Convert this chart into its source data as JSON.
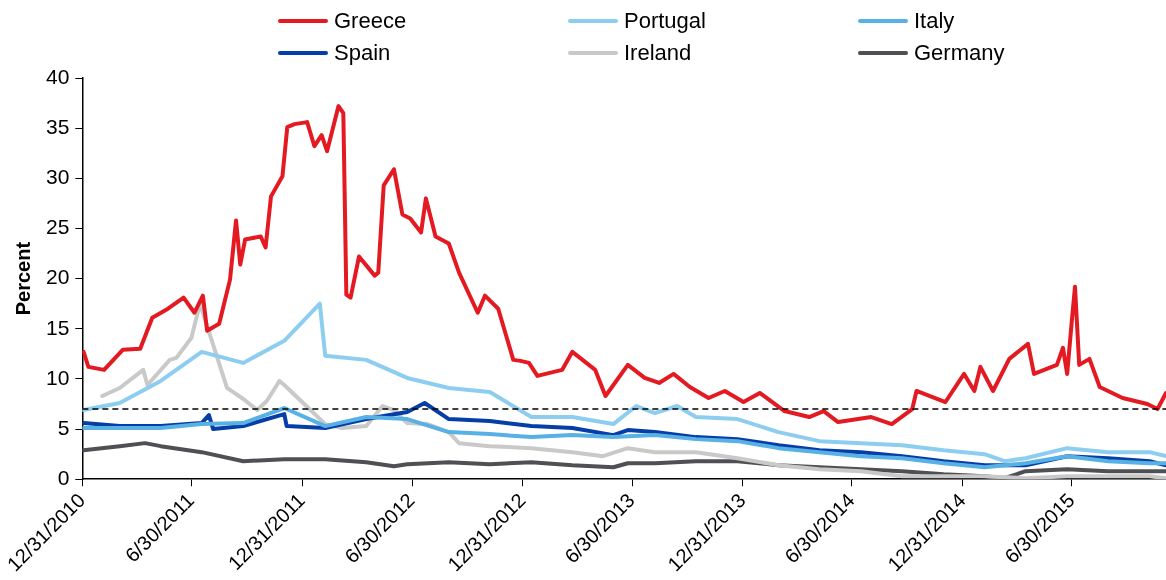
{
  "chart_data": {
    "type": "line",
    "ylabel": "Percent",
    "xlim": [
      "2010-12-31",
      "2015-12-03"
    ],
    "ylim": [
      0,
      40
    ],
    "yticks": [
      0,
      5,
      10,
      15,
      20,
      25,
      30,
      35,
      40
    ],
    "xticks": [
      {
        "value": "2010-12-31",
        "label": "12/31/2010"
      },
      {
        "value": "2011-06-30",
        "label": "6/30/2011"
      },
      {
        "value": "2011-12-31",
        "label": "12/31/2011"
      },
      {
        "value": "2012-06-30",
        "label": "6/30/2012"
      },
      {
        "value": "2012-12-31",
        "label": "12/31/2012"
      },
      {
        "value": "2013-06-30",
        "label": "6/30/2013"
      },
      {
        "value": "2013-12-31",
        "label": "12/31/2013"
      },
      {
        "value": "2014-06-30",
        "label": "6/30/2014"
      },
      {
        "value": "2014-12-31",
        "label": "12/31/2014"
      },
      {
        "value": "2015-06-30",
        "label": "6/30/2015"
      }
    ],
    "grid": false,
    "legend": "top",
    "marker": "none",
    "line_style": "solid",
    "ref_lines": [
      {
        "axis": "y",
        "value": 7,
        "color": "#000000",
        "line_style": "dashed"
      }
    ],
    "series": [
      {
        "name": "Greece",
        "color": "#e31a22",
        "x": [
          "2011-01-02",
          "2011-01-10",
          "2011-02-05",
          "2011-03-08",
          "2011-04-06",
          "2011-04-26",
          "2011-05-22",
          "2011-06-17",
          "2011-07-05",
          "2011-07-19",
          "2011-07-26",
          "2011-08-15",
          "2011-09-02",
          "2011-09-12",
          "2011-09-19",
          "2011-09-27",
          "2011-10-23",
          "2011-10-31",
          "2011-11-09",
          "2011-11-28",
          "2011-12-06",
          "2011-12-18",
          "2012-01-08",
          "2012-01-20",
          "2012-02-01",
          "2012-02-10",
          "2012-02-29",
          "2012-03-08",
          "2012-03-13",
          "2012-03-20",
          "2012-04-03",
          "2012-04-29",
          "2012-05-05",
          "2012-05-14",
          "2012-05-31",
          "2012-06-14",
          "2012-06-27",
          "2012-07-15",
          "2012-07-23",
          "2012-08-08",
          "2012-08-30",
          "2012-09-16",
          "2012-10-17",
          "2012-10-29",
          "2012-11-20",
          "2012-12-15",
          "2012-12-27",
          "2013-01-10",
          "2013-01-24",
          "2013-03-06",
          "2013-03-23",
          "2013-04-30",
          "2013-05-17",
          "2013-06-23",
          "2013-07-21",
          "2013-08-14",
          "2013-09-07",
          "2013-10-04",
          "2013-11-04",
          "2013-12-01",
          "2014-01-01",
          "2014-01-28",
          "2014-03-10",
          "2014-04-20",
          "2014-05-14",
          "2014-06-07",
          "2014-08-01",
          "2014-09-04",
          "2014-10-08",
          "2014-10-15",
          "2014-12-02",
          "2015-01-02",
          "2015-01-19",
          "2015-01-29",
          "2015-02-19",
          "2015-03-18",
          "2015-04-18",
          "2015-04-28",
          "2015-06-05",
          "2015-06-15",
          "2015-06-22",
          "2015-06-29",
          "2015-07-05",
          "2015-07-12",
          "2015-07-29",
          "2015-08-15",
          "2015-09-22",
          "2015-11-02",
          "2015-11-19",
          "2015-12-03"
        ],
        "values": [
          12.7,
          11.2,
          10.9,
          12.9,
          13.0,
          16.1,
          17.0,
          18.1,
          16.6,
          18.3,
          14.8,
          15.5,
          19.9,
          25.8,
          21.4,
          23.9,
          24.2,
          23.1,
          28.2,
          30.2,
          35.1,
          35.4,
          35.6,
          33.2,
          34.3,
          32.7,
          37.2,
          36.5,
          18.4,
          18.1,
          22.2,
          20.3,
          20.6,
          29.3,
          30.9,
          26.4,
          26.0,
          24.6,
          28.0,
          24.2,
          23.5,
          20.6,
          16.6,
          18.3,
          17.0,
          11.9,
          11.8,
          11.6,
          10.3,
          10.9,
          12.7,
          10.9,
          8.3,
          11.4,
          10.1,
          9.6,
          10.5,
          9.2,
          8.1,
          8.8,
          7.7,
          8.6,
          6.8,
          6.2,
          6.8,
          5.7,
          6.2,
          5.5,
          7.0,
          8.8,
          7.7,
          10.5,
          8.8,
          11.2,
          8.8,
          12.0,
          13.5,
          10.5,
          11.4,
          13.1,
          10.5,
          15.3,
          19.2,
          11.4,
          12.0,
          9.2,
          8.1,
          7.5,
          7.0,
          8.6
        ]
      },
      {
        "name": "Portugal",
        "color": "#8dcdf0",
        "x": [
          "2011-01-02",
          "2011-03-03",
          "2011-05-10",
          "2011-07-17",
          "2011-09-24",
          "2011-12-01",
          "2012-01-29",
          "2012-02-07",
          "2012-04-15",
          "2012-06-22",
          "2012-08-30",
          "2012-11-06",
          "2013-01-14",
          "2013-03-23",
          "2013-05-30",
          "2013-07-07",
          "2013-08-07",
          "2013-09-13",
          "2013-10-14",
          "2013-12-22",
          "2014-02-28",
          "2014-05-07",
          "2014-07-15",
          "2014-09-21",
          "2014-11-29",
          "2015-02-05",
          "2015-03-10",
          "2015-04-14",
          "2015-06-22",
          "2015-08-29",
          "2015-11-06",
          "2015-12-03"
        ],
        "values": [
          6.9,
          7.6,
          9.8,
          12.7,
          11.6,
          13.8,
          17.5,
          12.3,
          11.9,
          10.1,
          9.1,
          8.7,
          6.2,
          6.2,
          5.5,
          7.3,
          6.6,
          7.3,
          6.2,
          6.0,
          4.7,
          3.8,
          3.6,
          3.4,
          2.9,
          2.5,
          1.8,
          2.1,
          3.1,
          2.7,
          2.7,
          2.3
        ]
      },
      {
        "name": "Italy",
        "color": "#58b1e4",
        "x": [
          "2011-01-02",
          "2011-03-03",
          "2011-05-10",
          "2011-07-17",
          "2011-09-24",
          "2011-12-01",
          "2012-02-07",
          "2012-04-15",
          "2012-06-22",
          "2012-08-30",
          "2012-11-06",
          "2013-01-14",
          "2013-03-23",
          "2013-05-30",
          "2013-08-07",
          "2013-10-14",
          "2013-12-22",
          "2014-02-28",
          "2014-05-07",
          "2014-07-15",
          "2014-09-21",
          "2014-11-29",
          "2015-02-05",
          "2015-04-14",
          "2015-06-22",
          "2015-08-29",
          "2015-11-06",
          "2015-12-03"
        ],
        "values": [
          5.1,
          5.1,
          5.1,
          5.5,
          5.6,
          7.1,
          5.3,
          6.2,
          6.0,
          4.7,
          4.5,
          4.2,
          4.4,
          4.2,
          4.4,
          4.0,
          3.8,
          3.1,
          2.7,
          2.3,
          2.1,
          1.6,
          1.2,
          1.6,
          2.3,
          1.8,
          1.6,
          1.6
        ]
      },
      {
        "name": "Spain",
        "color": "#063ea8",
        "x": [
          "2011-01-02",
          "2011-03-03",
          "2011-05-10",
          "2011-07-17",
          "2011-07-29",
          "2011-08-05",
          "2011-09-24",
          "2011-12-01",
          "2011-12-05",
          "2012-02-07",
          "2012-04-15",
          "2012-06-22",
          "2012-07-21",
          "2012-08-30",
          "2012-11-06",
          "2013-01-14",
          "2013-03-23",
          "2013-05-30",
          "2013-06-23",
          "2013-08-07",
          "2013-10-14",
          "2013-12-22",
          "2014-02-28",
          "2014-05-07",
          "2014-07-15",
          "2014-09-21",
          "2014-11-29",
          "2015-02-05",
          "2015-04-14",
          "2015-06-22",
          "2015-08-29",
          "2015-11-06",
          "2015-12-03"
        ],
        "values": [
          5.6,
          5.3,
          5.3,
          5.6,
          6.4,
          5.0,
          5.3,
          6.5,
          5.3,
          5.1,
          6.0,
          6.7,
          7.6,
          6.0,
          5.8,
          5.3,
          5.1,
          4.4,
          4.9,
          4.7,
          4.2,
          4.0,
          3.4,
          2.9,
          2.7,
          2.3,
          1.8,
          1.4,
          1.4,
          2.3,
          2.1,
          1.8,
          1.4
        ]
      },
      {
        "name": "Ireland",
        "color": "#c9c9c9",
        "x": [
          "2011-02-02",
          "2011-03-03",
          "2011-04-11",
          "2011-04-18",
          "2011-05-25",
          "2011-06-05",
          "2011-06-30",
          "2011-07-14",
          "2011-08-28",
          "2011-09-24",
          "2011-10-17",
          "2011-11-02",
          "2011-11-23",
          "2011-12-01",
          "2012-01-10",
          "2012-02-07",
          "2012-03-06",
          "2012-04-15",
          "2012-05-12",
          "2012-05-31",
          "2012-06-22",
          "2012-07-26",
          "2012-08-30",
          "2012-09-16",
          "2012-11-06",
          "2013-01-14",
          "2013-03-23",
          "2013-05-13",
          "2013-06-23",
          "2013-08-07",
          "2013-10-14",
          "2013-12-22",
          "2014-02-28",
          "2014-05-07",
          "2014-07-15",
          "2014-09-21",
          "2014-11-29",
          "2015-02-05",
          "2015-04-14",
          "2015-06-22",
          "2015-11-06",
          "2015-12-03"
        ],
        "values": [
          8.3,
          9.1,
          10.9,
          9.4,
          11.9,
          12.1,
          14.1,
          17.5,
          9.1,
          8.0,
          6.9,
          7.8,
          9.8,
          9.4,
          7.1,
          5.5,
          5.1,
          5.3,
          7.3,
          6.9,
          5.6,
          5.5,
          4.7,
          3.6,
          3.3,
          3.1,
          2.7,
          2.3,
          3.1,
          2.7,
          2.7,
          2.1,
          1.4,
          1.0,
          0.8,
          0.3,
          0.3,
          0.3,
          0.1,
          0.3,
          0.3,
          0.1
        ]
      },
      {
        "name": "Germany",
        "color": "#4f4f54",
        "x": [
          "2011-01-02",
          "2011-03-03",
          "2011-04-14",
          "2011-05-10",
          "2011-07-17",
          "2011-09-24",
          "2011-12-01",
          "2012-02-07",
          "2012-04-15",
          "2012-05-31",
          "2012-06-22",
          "2012-08-30",
          "2012-11-06",
          "2013-01-14",
          "2013-03-23",
          "2013-05-30",
          "2013-06-23",
          "2013-08-07",
          "2013-10-14",
          "2013-12-22",
          "2014-02-28",
          "2014-05-07",
          "2014-07-15",
          "2014-09-21",
          "2014-11-29",
          "2015-02-05",
          "2015-03-10",
          "2015-04-14",
          "2015-06-22",
          "2015-08-29",
          "2015-11-06",
          "2015-12-03"
        ],
        "values": [
          2.9,
          3.3,
          3.6,
          3.3,
          2.7,
          1.8,
          2.0,
          2.0,
          1.7,
          1.3,
          1.5,
          1.7,
          1.5,
          1.7,
          1.4,
          1.2,
          1.6,
          1.6,
          1.8,
          1.8,
          1.4,
          1.2,
          1.0,
          0.8,
          0.5,
          0.3,
          0.1,
          0.8,
          1.0,
          0.8,
          0.8,
          0.8
        ]
      }
    ]
  }
}
